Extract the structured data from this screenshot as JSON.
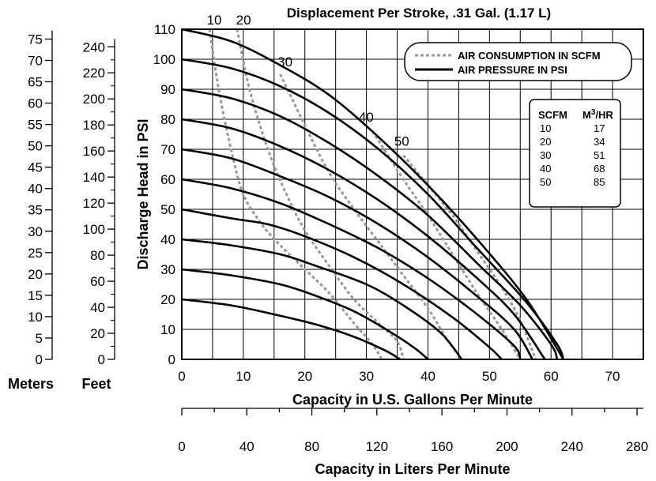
{
  "chart_data": {
    "type": "line",
    "title": "Displacement Per Stroke, .31 Gal. (1.17 L)",
    "xlabel": "Capacity in U.S. Gallons Per Minute",
    "ylabel": "Discharge Head in PSI",
    "xlabel2": "Capacity in Liters Per Minute",
    "meters_label": "Meters",
    "feet_label": "Feet",
    "xlim": [
      0,
      75
    ],
    "ylim": [
      0,
      110
    ],
    "x_ticks": [
      0,
      10,
      20,
      30,
      40,
      50,
      60,
      70
    ],
    "y_ticks": [
      0,
      10,
      20,
      30,
      40,
      50,
      60,
      70,
      80,
      90,
      100,
      110
    ],
    "feet_ticks": [
      0,
      20,
      40,
      60,
      80,
      100,
      120,
      140,
      160,
      180,
      200,
      220,
      240
    ],
    "meters_ticks": [
      0,
      5,
      10,
      15,
      20,
      25,
      30,
      35,
      40,
      45,
      50,
      55,
      60,
      65,
      70,
      75
    ],
    "lpm_ticks": [
      0,
      40,
      80,
      120,
      160,
      200,
      240,
      280
    ],
    "grid": true,
    "legend": {
      "position": "top-right",
      "entries": [
        "AIR CONSUMPTION IN SCFM",
        "AIR PRESSURE IN PSI"
      ]
    },
    "conversion_table": {
      "headers": [
        "SCFM",
        "M3/HR"
      ],
      "rows": [
        [
          "10",
          "17"
        ],
        [
          "20",
          "34"
        ],
        [
          "30",
          "51"
        ],
        [
          "40",
          "68"
        ],
        [
          "50",
          "85"
        ]
      ]
    },
    "series": [
      {
        "name": "AIR PRESSURE IN PSI",
        "style": "solid",
        "color": "#000000",
        "curves": [
          {
            "psi": 20,
            "points": [
              [
                0,
                20
              ],
              [
                8,
                18
              ],
              [
                15,
                15
              ],
              [
                22,
                11.5
              ],
              [
                28,
                7.5
              ],
              [
                33,
                3
              ],
              [
                35.5,
                0
              ]
            ]
          },
          {
            "psi": 30,
            "points": [
              [
                0,
                30
              ],
              [
                8,
                28
              ],
              [
                16,
                25
              ],
              [
                22,
                21
              ],
              [
                28,
                16
              ],
              [
                34,
                9
              ],
              [
                38,
                3.5
              ],
              [
                40,
                0
              ]
            ]
          },
          {
            "psi": 40,
            "points": [
              [
                0,
                40
              ],
              [
                8,
                38
              ],
              [
                16,
                35
              ],
              [
                22,
                31
              ],
              [
                30,
                25
              ],
              [
                36,
                18
              ],
              [
                42,
                9
              ],
              [
                45.5,
                0
              ]
            ]
          },
          {
            "psi": 50,
            "points": [
              [
                0,
                50
              ],
              [
                8,
                47
              ],
              [
                14,
                45
              ],
              [
                20,
                41
              ],
              [
                28,
                34
              ],
              [
                36,
                25
              ],
              [
                44,
                14
              ],
              [
                50,
                4
              ],
              [
                52,
                0
              ]
            ]
          },
          {
            "psi": 60,
            "points": [
              [
                0,
                60
              ],
              [
                8,
                57
              ],
              [
                16,
                52
              ],
              [
                24,
                45
              ],
              [
                32,
                37
              ],
              [
                40,
                27
              ],
              [
                48,
                15
              ],
              [
                54,
                4.5
              ],
              [
                55,
                0
              ]
            ]
          },
          {
            "psi": 70,
            "points": [
              [
                0,
                70
              ],
              [
                8,
                67
              ],
              [
                16,
                61
              ],
              [
                24,
                54
              ],
              [
                32,
                45
              ],
              [
                40,
                34
              ],
              [
                48,
                21
              ],
              [
                54,
                10
              ],
              [
                57,
                0
              ]
            ]
          },
          {
            "psi": 80,
            "points": [
              [
                0,
                80
              ],
              [
                8,
                77
              ],
              [
                16,
                71
              ],
              [
                24,
                63
              ],
              [
                32,
                53
              ],
              [
                40,
                41
              ],
              [
                48,
                27
              ],
              [
                54,
                15
              ],
              [
                59,
                0
              ]
            ]
          },
          {
            "psi": 90,
            "points": [
              [
                0,
                90
              ],
              [
                8,
                87
              ],
              [
                16,
                81
              ],
              [
                24,
                72
              ],
              [
                32,
                61
              ],
              [
                40,
                48
              ],
              [
                48,
                32
              ],
              [
                55,
                18
              ],
              [
                60,
                5
              ],
              [
                61,
                0
              ]
            ]
          },
          {
            "psi": 100,
            "points": [
              [
                0,
                100
              ],
              [
                8,
                97
              ],
              [
                16,
                91
              ],
              [
                24,
                82
              ],
              [
                32,
                70
              ],
              [
                40,
                55
              ],
              [
                48,
                37
              ],
              [
                56,
                19
              ],
              [
                61,
                5
              ],
              [
                62,
                0
              ]
            ]
          },
          {
            "psi": 110,
            "points": [
              [
                0,
                110
              ],
              [
                8,
                106
              ],
              [
                16,
                98
              ],
              [
                24,
                88
              ],
              [
                32,
                74
              ],
              [
                40,
                58
              ],
              [
                48,
                40
              ],
              [
                56,
                20
              ],
              [
                62,
                0
              ]
            ]
          }
        ]
      },
      {
        "name": "AIR CONSUMPTION IN SCFM",
        "style": "dashed",
        "color": "#999999",
        "curves": [
          {
            "scfm": 10,
            "label": "10",
            "points": [
              [
                4.5,
                110
              ],
              [
                6,
                90
              ],
              [
                8,
                70
              ],
              [
                10,
                55
              ],
              [
                13,
                45
              ],
              [
                16,
                38
              ],
              [
                20,
                30
              ],
              [
                24,
                22
              ],
              [
                28,
                12
              ],
              [
                31,
                5
              ],
              [
                32.5,
                0
              ]
            ]
          },
          {
            "scfm": 20,
            "label": "20",
            "points": [
              [
                9,
                110
              ],
              [
                11,
                90
              ],
              [
                14,
                70
              ],
              [
                17,
                55
              ],
              [
                20,
                43
              ],
              [
                24,
                31
              ],
              [
                28,
                20
              ],
              [
                32,
                12
              ],
              [
                35,
                6
              ],
              [
                36,
                0
              ]
            ]
          },
          {
            "scfm": 30,
            "label": "30",
            "points": [
              [
                16,
                95
              ],
              [
                20,
                78
              ],
              [
                24,
                62
              ],
              [
                28,
                50
              ],
              [
                32,
                39
              ],
              [
                36,
                28
              ],
              [
                40,
                17
              ],
              [
                43,
                7
              ],
              [
                45.5,
                0
              ]
            ]
          },
          {
            "scfm": 40,
            "label": "40",
            "points": [
              [
                31,
                76
              ],
              [
                36,
                60
              ],
              [
                40,
                48
              ],
              [
                44,
                35
              ],
              [
                48,
                22
              ],
              [
                52,
                10
              ],
              [
                55,
                0
              ]
            ]
          },
          {
            "scfm": 50,
            "label": "50",
            "points": [
              [
                36,
                68
              ],
              [
                40,
                58
              ],
              [
                44,
                48
              ],
              [
                48,
                36
              ],
              [
                52,
                24
              ],
              [
                55,
                13
              ],
              [
                57.5,
                0
              ]
            ]
          }
        ]
      }
    ]
  }
}
